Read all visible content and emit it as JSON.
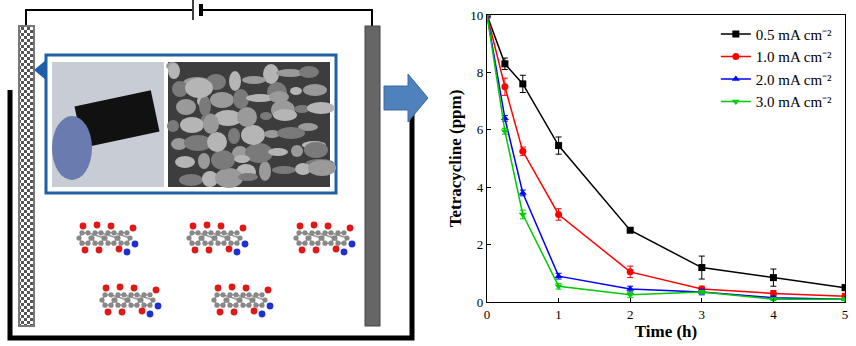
{
  "chart_data": {
    "type": "line",
    "x_label": "Time (h)",
    "y_label": "Tetracycline (ppm)",
    "x": [
      0,
      0.25,
      0.5,
      1,
      2,
      3,
      4,
      5
    ],
    "xlim": [
      0,
      5
    ],
    "xticks": [
      0,
      1,
      2,
      3,
      4,
      5
    ],
    "ylim": [
      0,
      10
    ],
    "yticks": [
      0,
      2,
      4,
      6,
      8,
      10
    ],
    "grid": false,
    "legend": "upper right",
    "series": [
      {
        "name": "0.5 mA cm⁻²",
        "color": "#000000",
        "marker": "square",
        "line_style": "solid",
        "values": [
          10,
          8.3,
          7.6,
          5.45,
          2.5,
          1.2,
          0.85,
          0.5
        ],
        "errors": [
          0,
          0.2,
          0.3,
          0.3,
          0.05,
          0.4,
          0.3,
          0.1
        ]
      },
      {
        "name": "1.0 mA cm⁻²",
        "color": "#ff0000",
        "marker": "circle",
        "line_style": "solid",
        "values": [
          10,
          7.5,
          5.25,
          3.05,
          1.05,
          0.45,
          0.3,
          0.2
        ],
        "errors": [
          0,
          0.3,
          0.15,
          0.2,
          0.2,
          0.1,
          0.1,
          0.1
        ]
      },
      {
        "name": "2.0 mA cm⁻²",
        "color": "#0000ff",
        "marker": "triangle-up",
        "line_style": "solid",
        "values": [
          10,
          6.4,
          3.8,
          0.9,
          0.45,
          0.35,
          0.15,
          0.1
        ],
        "errors": [
          0,
          0.1,
          0.1,
          0.1,
          0.1,
          0.1,
          0.05,
          0.05
        ]
      },
      {
        "name": "3.0 mA cm⁻²",
        "color": "#00cc00",
        "marker": "triangle-down",
        "line_style": "solid",
        "values": [
          10,
          5.95,
          3.05,
          0.55,
          0.25,
          0.35,
          0.1,
          0.1
        ],
        "errors": [
          0,
          0.1,
          0.15,
          0.1,
          0.1,
          0.05,
          0.05,
          0.05
        ]
      }
    ]
  }
}
